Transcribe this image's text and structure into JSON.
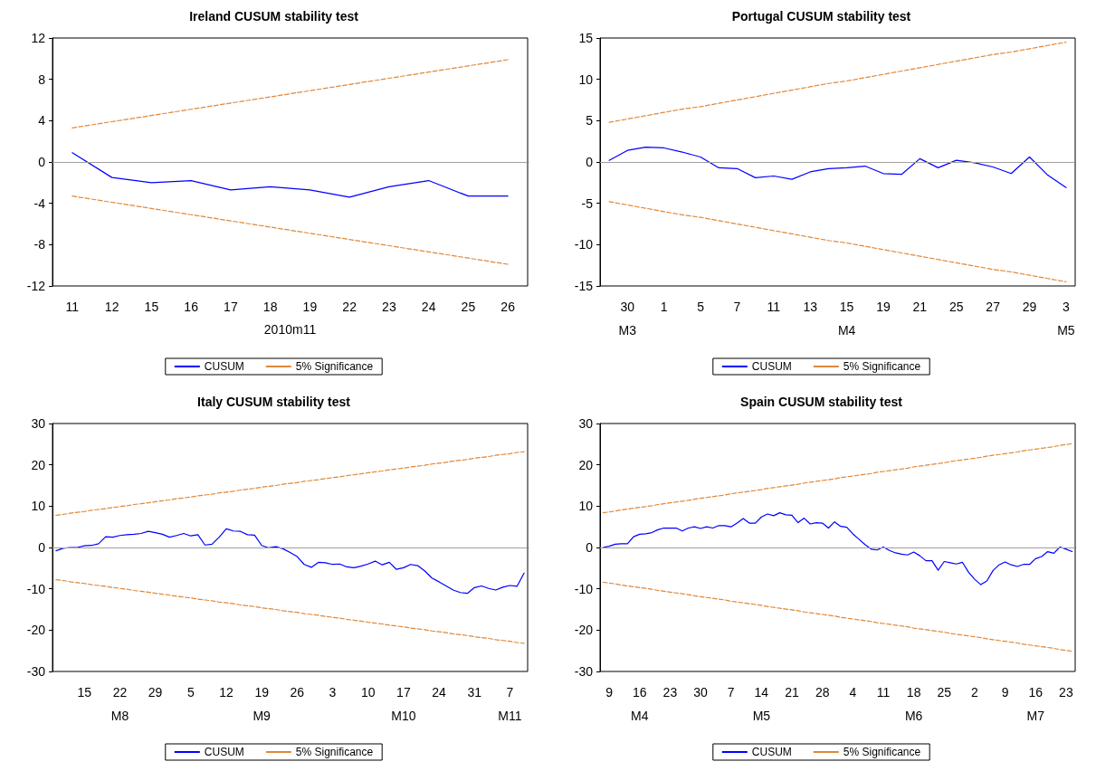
{
  "chart_data": [
    {
      "type": "line",
      "title": "Ireland CUSUM stability test",
      "xlabel": "2010m11",
      "categories": [
        "11",
        "12",
        "15",
        "16",
        "17",
        "18",
        "19",
        "22",
        "23",
        "24",
        "25",
        "26"
      ],
      "series": [
        {
          "name": "CUSUM",
          "color": "#0000ff",
          "values": [
            0.9,
            -1.5,
            -2.0,
            -1.8,
            -2.7,
            -2.4,
            -2.7,
            -3.4,
            -2.4,
            -1.8,
            -3.3,
            -3.3
          ]
        },
        {
          "name": "5% Significance",
          "color": "#e0883a",
          "line_style": "dashed",
          "values": [
            3.3,
            3.9,
            4.5,
            5.1,
            5.7,
            6.3,
            6.9,
            7.5,
            8.1,
            8.7,
            9.3,
            9.9
          ]
        },
        {
          "color": "#e0883a",
          "line_style": "dashed",
          "values": [
            -3.3,
            -3.9,
            -4.5,
            -5.1,
            -5.7,
            -6.3,
            -6.9,
            -7.5,
            -8.1,
            -8.7,
            -9.3,
            -9.9
          ]
        }
      ],
      "ylim": [
        -12,
        12
      ],
      "yticks": [
        -12,
        -8,
        -4,
        0,
        4,
        8,
        12
      ],
      "ref_lines": [
        {
          "axis": "y",
          "value": 0,
          "color": "#a0a0a0"
        }
      ],
      "legend": "bottom",
      "grid": false
    },
    {
      "type": "line",
      "title": "Portugal CUSUM stability test",
      "categories": [
        null,
        "30\nM3",
        null,
        "1",
        null,
        "5",
        null,
        "7",
        null,
        "11",
        null,
        "13",
        null,
        "15\nM4",
        null,
        "19",
        null,
        "21",
        null,
        "25",
        null,
        "27",
        null,
        "29",
        null,
        "3\nM5"
      ],
      "series": [
        {
          "name": "CUSUM",
          "color": "#0000ff",
          "values": [
            0.2,
            1.4,
            1.8,
            1.7,
            1.2,
            0.6,
            -0.7,
            -0.8,
            -1.9,
            -1.7,
            -2.1,
            -1.2,
            -0.8,
            -0.7,
            -0.5,
            -1.4,
            -1.5,
            0.4,
            -0.7,
            0.2,
            -0.1,
            -0.6,
            -1.4,
            0.6,
            -1.6,
            -3.1
          ]
        },
        {
          "name": "5% Significance",
          "color": "#e0883a",
          "line_style": "dashed",
          "values": [
            4.8,
            5.2,
            5.6,
            6.0,
            6.4,
            6.7,
            7.1,
            7.5,
            7.9,
            8.3,
            8.7,
            9.1,
            9.5,
            9.8,
            10.2,
            10.6,
            11.0,
            11.4,
            11.8,
            12.2,
            12.6,
            13.0,
            13.3,
            13.7,
            14.1,
            14.5
          ]
        },
        {
          "color": "#e0883a",
          "line_style": "dashed",
          "values": [
            -4.8,
            -5.2,
            -5.6,
            -6.0,
            -6.4,
            -6.7,
            -7.1,
            -7.5,
            -7.9,
            -8.3,
            -8.7,
            -9.1,
            -9.5,
            -9.8,
            -10.2,
            -10.6,
            -11.0,
            -11.4,
            -11.8,
            -12.2,
            -12.6,
            -13.0,
            -13.3,
            -13.7,
            -14.1,
            -14.5
          ]
        }
      ],
      "ylim": [
        -15,
        15
      ],
      "yticks": [
        -15,
        -10,
        -5,
        0,
        5,
        10,
        15
      ],
      "ref_lines": [
        {
          "axis": "y",
          "value": 0,
          "color": "#a0a0a0"
        }
      ],
      "legend": "bottom",
      "grid": false
    },
    {
      "type": "line",
      "title": "Italy CUSUM stability test",
      "categories": [
        null,
        null,
        null,
        null,
        "15",
        null,
        null,
        null,
        null,
        "22\nM8",
        null,
        null,
        null,
        null,
        "29",
        null,
        null,
        null,
        null,
        "5",
        null,
        null,
        null,
        null,
        "12",
        null,
        null,
        null,
        null,
        "19\nM9",
        null,
        null,
        null,
        null,
        "26",
        null,
        null,
        null,
        null,
        "3",
        null,
        null,
        null,
        null,
        "10",
        null,
        null,
        null,
        null,
        "17\nM10",
        null,
        null,
        null,
        null,
        "24",
        null,
        null,
        null,
        null,
        "31",
        null,
        null,
        null,
        null,
        "7\nM11",
        null,
        null
      ],
      "series": [
        {
          "name": "CUSUM",
          "color": "#0000ff",
          "values": [
            -0.8,
            -0.2,
            0,
            0,
            0.4,
            0.5,
            0.9,
            2.6,
            2.5,
            2.9,
            3.1,
            3.2,
            3.4,
            3.9,
            3.6,
            3.2,
            2.5,
            2.9,
            3.4,
            2.8,
            3.1,
            0.6,
            0.8,
            2.5,
            4.5,
            4.0,
            3.9,
            3.1,
            3.0,
            0.5,
            -0.1,
            0.2,
            -0.3,
            -1.2,
            -2.2,
            -4.1,
            -4.8,
            -3.6,
            -3.7,
            -4.1,
            -4.0,
            -4.7,
            -4.9,
            -4.5,
            -4.0,
            -3.3,
            -4.2,
            -3.6,
            -5.3,
            -4.9,
            -4.1,
            -4.4,
            -5.7,
            -7.4,
            -8.3,
            -9.3,
            -10.3,
            -10.9,
            -11.1,
            -9.7,
            -9.3,
            -9.9,
            -10.3,
            -9.6,
            -9.2,
            -9.4,
            -6.2
          ]
        },
        {
          "name": "5% Significance",
          "color": "#e0883a",
          "line_style": "dashed",
          "values": [
            7.8,
            8.0,
            8.3,
            8.5,
            8.7,
            9.0,
            9.2,
            9.4,
            9.7,
            9.9,
            10.1,
            10.4,
            10.6,
            10.8,
            11.1,
            11.3,
            11.5,
            11.8,
            12.0,
            12.2,
            12.5,
            12.7,
            12.9,
            13.2,
            13.4,
            13.6,
            13.9,
            14.1,
            14.3,
            14.6,
            14.8,
            15.0,
            15.3,
            15.5,
            15.7,
            16.0,
            16.2,
            16.4,
            16.7,
            16.9,
            17.1,
            17.4,
            17.6,
            17.8,
            18.1,
            18.3,
            18.5,
            18.8,
            19.0,
            19.2,
            19.5,
            19.7,
            19.9,
            20.2,
            20.4,
            20.6,
            20.9,
            21.1,
            21.3,
            21.6,
            21.8,
            22.0,
            22.3,
            22.5,
            22.7,
            23.0,
            23.2
          ]
        },
        {
          "color": "#e0883a",
          "line_style": "dashed",
          "values": [
            -7.8,
            -8.0,
            -8.3,
            -8.5,
            -8.7,
            -9.0,
            -9.2,
            -9.4,
            -9.7,
            -9.9,
            -10.1,
            -10.4,
            -10.6,
            -10.8,
            -11.1,
            -11.3,
            -11.5,
            -11.8,
            -12.0,
            -12.2,
            -12.5,
            -12.7,
            -12.9,
            -13.2,
            -13.4,
            -13.6,
            -13.9,
            -14.1,
            -14.3,
            -14.6,
            -14.8,
            -15.0,
            -15.3,
            -15.5,
            -15.7,
            -16.0,
            -16.2,
            -16.4,
            -16.7,
            -16.9,
            -17.1,
            -17.4,
            -17.6,
            -17.8,
            -18.1,
            -18.3,
            -18.5,
            -18.8,
            -19.0,
            -19.2,
            -19.5,
            -19.7,
            -19.9,
            -20.2,
            -20.4,
            -20.6,
            -20.9,
            -21.1,
            -21.3,
            -21.6,
            -21.8,
            -22.0,
            -22.3,
            -22.5,
            -22.7,
            -23.0,
            -23.2
          ]
        }
      ],
      "ylim": [
        -30,
        30
      ],
      "yticks": [
        -30,
        -20,
        -10,
        0,
        10,
        20,
        30
      ],
      "ref_lines": [
        {
          "axis": "y",
          "value": 0,
          "color": "#a0a0a0"
        }
      ],
      "legend": "bottom",
      "grid": false
    },
    {
      "type": "line",
      "title": "Spain CUSUM stability test",
      "categories": [
        null,
        "9",
        null,
        null,
        null,
        null,
        "16\nM4",
        null,
        null,
        null,
        null,
        "23",
        null,
        null,
        null,
        null,
        "30",
        null,
        null,
        null,
        null,
        "7",
        null,
        null,
        null,
        null,
        "14\nM5",
        null,
        null,
        null,
        null,
        "21",
        null,
        null,
        null,
        null,
        "28",
        null,
        null,
        null,
        null,
        "4",
        null,
        null,
        null,
        null,
        "11",
        null,
        null,
        null,
        null,
        "18\nM6",
        null,
        null,
        null,
        null,
        "25",
        null,
        null,
        null,
        null,
        "2",
        null,
        null,
        null,
        null,
        "9",
        null,
        null,
        null,
        null,
        "16\nM7",
        null,
        null,
        null,
        null,
        "23",
        null
      ],
      "series": [
        {
          "name": "CUSUM",
          "color": "#0000ff",
          "values": [
            0,
            0.3,
            0.8,
            0.9,
            0.9,
            2.6,
            3.2,
            3.3,
            3.6,
            4.3,
            4.7,
            4.7,
            4.7,
            4.0,
            4.7,
            5.0,
            4.6,
            5.0,
            4.7,
            5.3,
            5.3,
            5.0,
            5.9,
            7.0,
            5.9,
            5.9,
            7.4,
            8.1,
            7.7,
            8.4,
            7.9,
            7.8,
            6.0,
            7.1,
            5.7,
            6.0,
            5.9,
            4.7,
            6.2,
            5.1,
            4.9,
            3.3,
            2.0,
            0.7,
            -0.4,
            -0.6,
            0.1,
            -0.7,
            -1.3,
            -1.6,
            -1.8,
            -1.1,
            -2.0,
            -3.2,
            -3.2,
            -5.5,
            -3.4,
            -3.7,
            -4.0,
            -3.6,
            -6.0,
            -7.7,
            -9.0,
            -8.1,
            -5.6,
            -4.2,
            -3.5,
            -4.2,
            -4.6,
            -4.1,
            -4.1,
            -2.7,
            -2.2,
            -1.0,
            -1.4,
            0.1,
            -0.4,
            -1.0
          ]
        },
        {
          "name": "5% Significance",
          "color": "#e0883a",
          "line_style": "dashed",
          "values": [
            8.4,
            8.6,
            8.8,
            9.1,
            9.3,
            9.5,
            9.7,
            9.9,
            10.1,
            10.4,
            10.6,
            10.8,
            11.0,
            11.2,
            11.4,
            11.7,
            11.9,
            12.1,
            12.3,
            12.5,
            12.7,
            13.0,
            13.2,
            13.4,
            13.6,
            13.8,
            14.0,
            14.3,
            14.5,
            14.7,
            14.9,
            15.1,
            15.3,
            15.6,
            15.8,
            16.0,
            16.2,
            16.4,
            16.6,
            16.9,
            17.1,
            17.3,
            17.5,
            17.7,
            17.9,
            18.2,
            18.4,
            18.6,
            18.8,
            19.0,
            19.2,
            19.5,
            19.7,
            19.9,
            20.1,
            20.3,
            20.5,
            20.8,
            21.0,
            21.2,
            21.4,
            21.6,
            21.8,
            22.1,
            22.3,
            22.5,
            22.7,
            22.9,
            23.1,
            23.4,
            23.6,
            23.8,
            24.0,
            24.2,
            24.4,
            24.7,
            24.9,
            25.1
          ]
        },
        {
          "color": "#e0883a",
          "line_style": "dashed",
          "values": [
            -8.4,
            -8.6,
            -8.8,
            -9.1,
            -9.3,
            -9.5,
            -9.7,
            -9.9,
            -10.1,
            -10.4,
            -10.6,
            -10.8,
            -11.0,
            -11.2,
            -11.4,
            -11.7,
            -11.9,
            -12.1,
            -12.3,
            -12.5,
            -12.7,
            -13.0,
            -13.2,
            -13.4,
            -13.6,
            -13.8,
            -14.0,
            -14.3,
            -14.5,
            -14.7,
            -14.9,
            -15.1,
            -15.3,
            -15.6,
            -15.8,
            -16.0,
            -16.2,
            -16.4,
            -16.6,
            -16.9,
            -17.1,
            -17.3,
            -17.5,
            -17.7,
            -17.9,
            -18.2,
            -18.4,
            -18.6,
            -18.8,
            -19.0,
            -19.2,
            -19.5,
            -19.7,
            -19.9,
            -20.1,
            -20.3,
            -20.5,
            -20.8,
            -21.0,
            -21.2,
            -21.4,
            -21.6,
            -21.8,
            -22.1,
            -22.3,
            -22.5,
            -22.7,
            -22.9,
            -23.1,
            -23.4,
            -23.6,
            -23.8,
            -24.0,
            -24.2,
            -24.4,
            -24.7,
            -24.9,
            -25.1
          ]
        }
      ],
      "ylim": [
        -30,
        30
      ],
      "yticks": [
        -30,
        -20,
        -10,
        0,
        10,
        20,
        30
      ],
      "ref_lines": [
        {
          "axis": "y",
          "value": 0,
          "color": "#a0a0a0"
        }
      ],
      "legend": "bottom",
      "grid": false
    }
  ]
}
